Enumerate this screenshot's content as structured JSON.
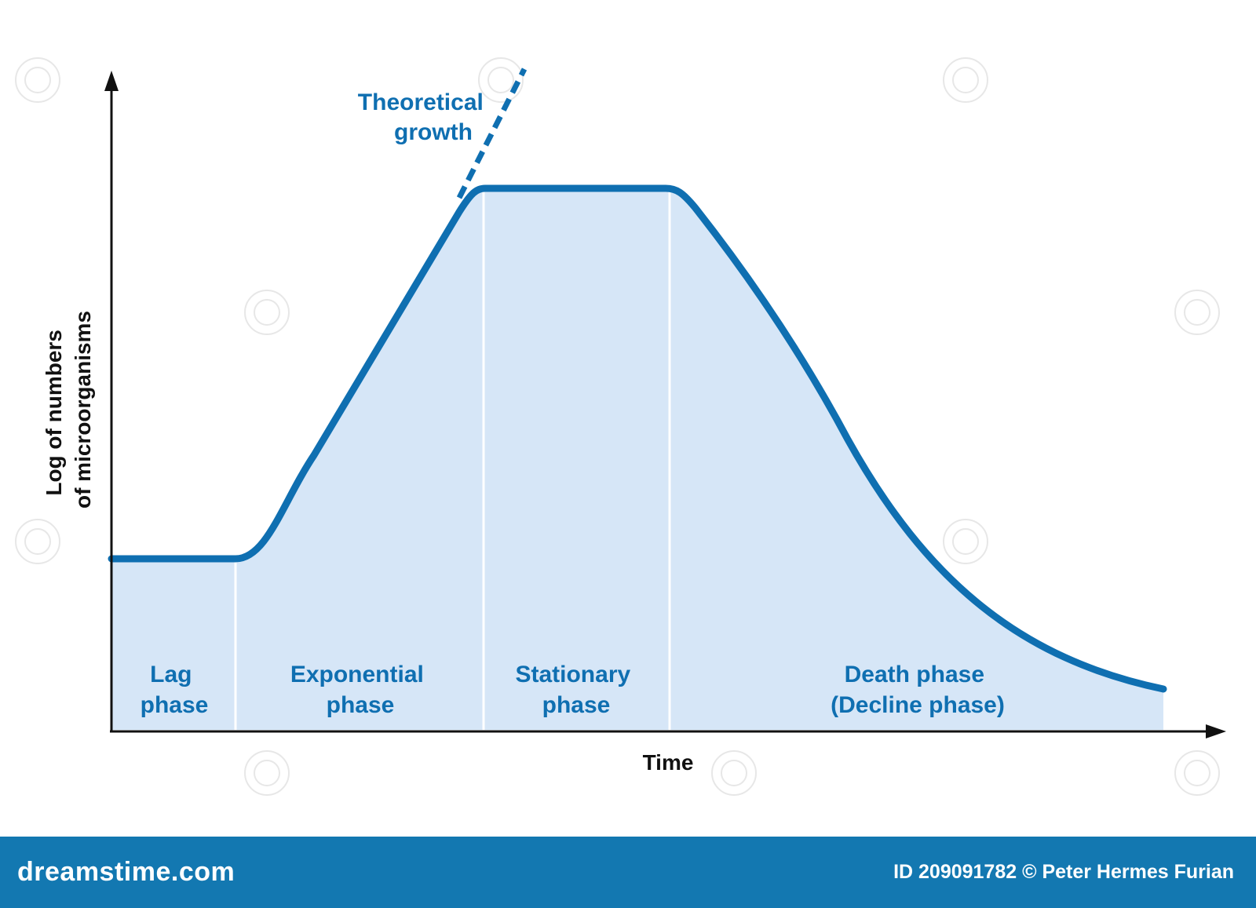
{
  "diagram": {
    "y_axis_label_line1": "Log of numbers",
    "y_axis_label_line2": "of microorganisms",
    "x_axis_label": "Time",
    "annotation_line1": "Theoretical",
    "annotation_line2": "growth",
    "phases": [
      {
        "line1": "Lag",
        "line2": "phase"
      },
      {
        "line1": "Exponential",
        "line2": "phase"
      },
      {
        "line1": "Stationary",
        "line2": "phase"
      },
      {
        "line1": "Death phase",
        "line2": "(Decline phase)"
      }
    ]
  },
  "footer": {
    "brand": "dreamstime.com",
    "credit": "ID 209091782 © Peter Hermes Furian"
  },
  "colors": {
    "curve": "#0f6fb1",
    "fill": "#d6e6f7",
    "axis": "#111111",
    "footer": "#1378b1"
  }
}
